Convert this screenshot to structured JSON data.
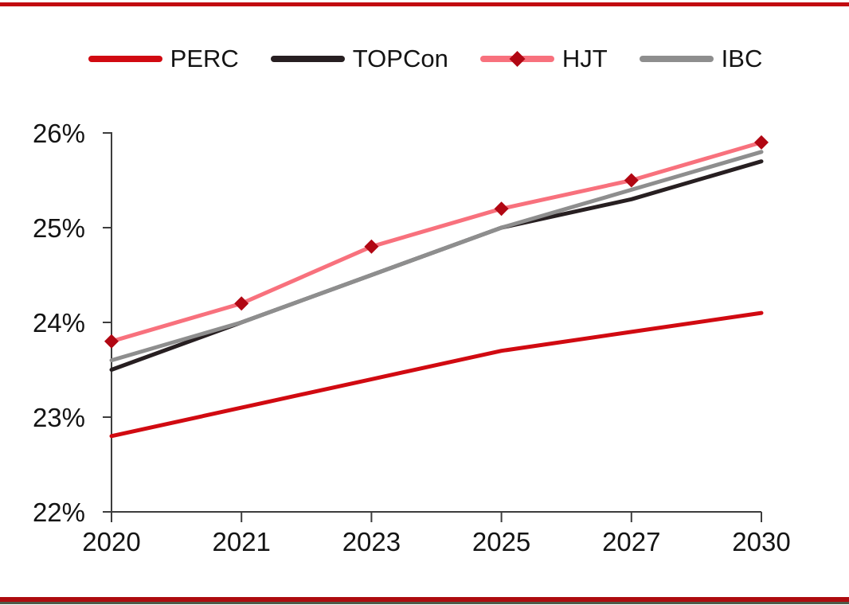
{
  "page": {
    "background": "#ffffff",
    "top_border_color": "#c20a10",
    "bottom_border_red_color": "#ae0c0f",
    "bottom_border_green_color": "#4f5a49",
    "axis_color": "#3d3d3d",
    "tick_label_color": "#141414"
  },
  "chart_data": {
    "type": "line",
    "title": "",
    "xlabel": "",
    "ylabel": "",
    "categories": [
      "2020",
      "2021",
      "2023",
      "2025",
      "2027",
      "2030"
    ],
    "series": [
      {
        "name": "PERC",
        "color": "#d10a11",
        "marker": "none",
        "values": [
          22.8,
          23.1,
          23.4,
          23.7,
          23.9,
          24.1
        ]
      },
      {
        "name": "TOPCon",
        "color": "#271f21",
        "marker": "none",
        "values": [
          23.5,
          24.0,
          24.5,
          25.0,
          25.3,
          25.7
        ]
      },
      {
        "name": "HJT",
        "color": "#f8717d",
        "marker": "diamond",
        "marker_color": "#b10713",
        "values": [
          23.8,
          24.2,
          24.8,
          25.2,
          25.5,
          25.9
        ]
      },
      {
        "name": "IBC",
        "color": "#8e8e8e",
        "marker": "none",
        "values": [
          23.6,
          24.0,
          24.5,
          25.0,
          25.4,
          25.8
        ]
      }
    ],
    "ylim": [
      22,
      26
    ],
    "ytick_step": 1,
    "ytick_labels": [
      "22%",
      "23%",
      "24%",
      "25%",
      "26%"
    ],
    "xtick_labels": [
      "2020",
      "2021",
      "2023",
      "2025",
      "2027",
      "2030"
    ],
    "unit": "%",
    "grid": false,
    "legend_position": "top"
  }
}
